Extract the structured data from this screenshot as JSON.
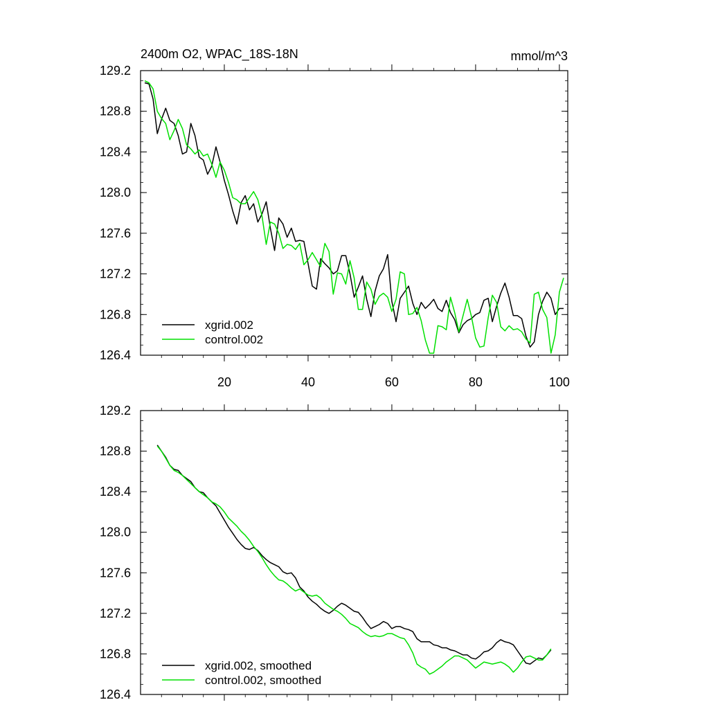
{
  "colors": {
    "xgrid": "#000000",
    "control": "#00e000",
    "axes": "#000000"
  },
  "chart_data": [
    {
      "type": "line",
      "title": "2400m O2, WPAC_18S-18N",
      "unit_label": "mmol/m^3",
      "xlim": [
        0,
        102
      ],
      "ylim": [
        126.4,
        129.2
      ],
      "yticks": [
        "129.2",
        "128.8",
        "128.4",
        "128.0",
        "127.6",
        "127.2",
        "126.8",
        "126.4"
      ],
      "xticks": [
        "20",
        "40",
        "60",
        "80",
        "100"
      ],
      "legend_position": "bottom-left",
      "series": [
        {
          "name": "xgrid.002",
          "color": "#000000",
          "x": [
            1,
            2,
            3,
            4,
            5,
            6,
            7,
            8,
            9,
            10,
            11,
            12,
            13,
            14,
            15,
            16,
            17,
            18,
            19,
            20,
            21,
            22,
            23,
            24,
            25,
            26,
            27,
            28,
            29,
            30,
            31,
            32,
            33,
            34,
            35,
            36,
            37,
            38,
            39,
            40,
            41,
            42,
            43,
            44,
            45,
            46,
            47,
            48,
            49,
            50,
            51,
            52,
            53,
            54,
            55,
            56,
            57,
            58,
            59,
            60,
            61,
            62,
            63,
            64,
            65,
            66,
            67,
            68,
            69,
            70,
            71,
            72,
            73,
            74,
            75,
            76,
            77,
            78,
            79,
            80,
            81,
            82,
            83,
            84,
            85,
            86,
            87,
            88,
            89,
            90,
            91,
            92,
            93,
            94,
            95,
            96,
            97,
            98,
            99,
            100,
            101
          ],
          "values": [
            129.08,
            129.07,
            128.92,
            128.58,
            128.72,
            128.83,
            128.71,
            128.68,
            128.56,
            128.38,
            128.4,
            128.68,
            128.56,
            128.35,
            128.32,
            128.18,
            128.26,
            128.45,
            128.3,
            128.12,
            127.98,
            127.82,
            127.69,
            127.9,
            127.97,
            127.83,
            127.89,
            127.71,
            127.79,
            127.91,
            127.65,
            127.43,
            127.75,
            127.69,
            127.56,
            127.65,
            127.52,
            127.53,
            127.52,
            127.3,
            127.08,
            127.05,
            127.35,
            127.3,
            127.26,
            127.2,
            127.23,
            127.38,
            127.38,
            127.2,
            126.97,
            127.07,
            127.18,
            126.95,
            126.78,
            127.03,
            127.18,
            127.25,
            127.39,
            126.93,
            126.73,
            126.96,
            127.02,
            127.08,
            126.91,
            126.8,
            126.92,
            126.86,
            126.9,
            126.95,
            126.86,
            126.83,
            126.94,
            126.82,
            126.75,
            126.62,
            126.7,
            126.74,
            126.76,
            126.8,
            126.82,
            126.94,
            126.96,
            126.73,
            126.88,
            127.01,
            127.11,
            126.97,
            126.79,
            126.79,
            126.76,
            126.59,
            126.48,
            126.53,
            126.8,
            126.93,
            127.02,
            126.96,
            126.8,
            126.86,
            126.86
          ]
        },
        {
          "name": "control.002",
          "color": "#00e000",
          "x": [
            1,
            2,
            3,
            4,
            5,
            6,
            7,
            8,
            9,
            10,
            11,
            12,
            13,
            14,
            15,
            16,
            17,
            18,
            19,
            20,
            21,
            22,
            23,
            24,
            25,
            26,
            27,
            28,
            29,
            30,
            31,
            32,
            33,
            34,
            35,
            36,
            37,
            38,
            39,
            40,
            41,
            42,
            43,
            44,
            45,
            46,
            47,
            48,
            49,
            50,
            51,
            52,
            53,
            54,
            55,
            56,
            57,
            58,
            59,
            60,
            61,
            62,
            63,
            64,
            65,
            66,
            67,
            68,
            69,
            70,
            71,
            72,
            73,
            74,
            75,
            76,
            77,
            78,
            79,
            80,
            81,
            82,
            83,
            84,
            85,
            86,
            87,
            88,
            89,
            90,
            91,
            92,
            93,
            94,
            95,
            96,
            97,
            98,
            99,
            100,
            101
          ],
          "values": [
            129.1,
            129.08,
            129.02,
            128.8,
            128.73,
            128.68,
            128.52,
            128.61,
            128.72,
            128.63,
            128.47,
            128.43,
            128.38,
            128.42,
            128.36,
            128.38,
            128.28,
            128.15,
            128.3,
            128.22,
            128.1,
            127.95,
            127.93,
            127.89,
            127.89,
            127.95,
            128.01,
            127.93,
            127.77,
            127.49,
            127.71,
            127.69,
            127.6,
            127.45,
            127.49,
            127.48,
            127.44,
            127.5,
            127.29,
            127.34,
            127.41,
            127.34,
            127.27,
            127.5,
            127.42,
            127.0,
            127.21,
            127.2,
            127.1,
            127.33,
            127.16,
            126.85,
            126.85,
            127.12,
            127.05,
            126.9,
            126.98,
            127.01,
            126.97,
            126.83,
            126.95,
            127.22,
            127.2,
            126.8,
            126.81,
            126.87,
            126.74,
            126.55,
            126.42,
            126.42,
            126.69,
            126.68,
            126.65,
            126.97,
            126.82,
            126.63,
            126.79,
            126.95,
            126.78,
            126.57,
            126.48,
            126.49,
            126.77,
            126.99,
            126.92,
            126.68,
            126.64,
            126.69,
            126.65,
            126.66,
            126.63,
            126.56,
            126.52,
            127.0,
            127.02,
            126.85,
            126.77,
            126.42,
            126.6,
            127.02,
            127.16
          ]
        }
      ]
    },
    {
      "type": "line",
      "title": "",
      "xlim": [
        0,
        102
      ],
      "ylim": [
        126.4,
        129.2
      ],
      "yticks": [
        "129.2",
        "128.8",
        "128.4",
        "128.0",
        "127.6",
        "127.2",
        "126.8",
        "126.4"
      ],
      "xticks": [],
      "legend_position": "bottom-left",
      "series": [
        {
          "name": "xgrid.002, smoothed",
          "color": "#000000",
          "x": [
            4,
            5,
            6,
            7,
            8,
            9,
            10,
            11,
            12,
            13,
            14,
            15,
            16,
            17,
            18,
            19,
            20,
            21,
            22,
            23,
            24,
            25,
            26,
            27,
            28,
            29,
            30,
            31,
            32,
            33,
            34,
            35,
            36,
            37,
            38,
            39,
            40,
            41,
            42,
            43,
            44,
            45,
            46,
            47,
            48,
            49,
            50,
            51,
            52,
            53,
            54,
            55,
            56,
            57,
            58,
            59,
            60,
            61,
            62,
            63,
            64,
            65,
            66,
            67,
            68,
            69,
            70,
            71,
            72,
            73,
            74,
            75,
            76,
            77,
            78,
            79,
            80,
            81,
            82,
            83,
            84,
            85,
            86,
            87,
            88,
            89,
            90,
            91,
            92,
            93,
            94,
            95,
            96,
            97,
            98
          ],
          "values": [
            128.86,
            128.8,
            128.74,
            128.66,
            128.62,
            128.61,
            128.56,
            128.53,
            128.5,
            128.44,
            128.4,
            128.39,
            128.34,
            128.3,
            128.26,
            128.19,
            128.12,
            128.05,
            127.99,
            127.93,
            127.88,
            127.84,
            127.83,
            127.85,
            127.82,
            127.77,
            127.73,
            127.7,
            127.68,
            127.66,
            127.61,
            127.59,
            127.6,
            127.55,
            127.46,
            127.42,
            127.36,
            127.32,
            127.29,
            127.25,
            127.22,
            127.2,
            127.23,
            127.27,
            127.3,
            127.28,
            127.25,
            127.22,
            127.21,
            127.16,
            127.1,
            127.05,
            127.07,
            127.09,
            127.12,
            127.1,
            127.05,
            127.07,
            127.07,
            127.05,
            127.04,
            127.02,
            126.95,
            126.92,
            126.92,
            126.92,
            126.89,
            126.88,
            126.86,
            126.86,
            126.84,
            126.83,
            126.81,
            126.79,
            126.79,
            126.76,
            126.75,
            126.78,
            126.82,
            126.83,
            126.86,
            126.91,
            126.94,
            126.92,
            126.91,
            126.89,
            126.83,
            126.77,
            126.71,
            126.7,
            126.73,
            126.76,
            126.75,
            126.79,
            126.84
          ]
        },
        {
          "name": "control.002, smoothed",
          "color": "#00e000",
          "x": [
            4,
            5,
            6,
            7,
            8,
            9,
            10,
            11,
            12,
            13,
            14,
            15,
            16,
            17,
            18,
            19,
            20,
            21,
            22,
            23,
            24,
            25,
            26,
            27,
            28,
            29,
            30,
            31,
            32,
            33,
            34,
            35,
            36,
            37,
            38,
            39,
            40,
            41,
            42,
            43,
            44,
            45,
            46,
            47,
            48,
            49,
            50,
            51,
            52,
            53,
            54,
            55,
            56,
            57,
            58,
            59,
            60,
            61,
            62,
            63,
            64,
            65,
            66,
            67,
            68,
            69,
            70,
            71,
            72,
            73,
            74,
            75,
            76,
            77,
            78,
            79,
            80,
            81,
            82,
            83,
            84,
            85,
            86,
            87,
            88,
            89,
            90,
            91,
            92,
            93,
            94,
            95,
            96,
            97,
            98
          ],
          "values": [
            128.85,
            128.8,
            128.73,
            128.66,
            128.61,
            128.59,
            128.56,
            128.52,
            128.48,
            128.44,
            128.4,
            128.37,
            128.34,
            128.3,
            128.28,
            128.25,
            128.2,
            128.14,
            128.1,
            128.06,
            128.01,
            127.97,
            127.92,
            127.86,
            127.81,
            127.75,
            127.68,
            127.62,
            127.57,
            127.53,
            127.52,
            127.49,
            127.45,
            127.42,
            127.44,
            127.41,
            127.38,
            127.37,
            127.38,
            127.35,
            127.3,
            127.27,
            127.24,
            127.22,
            127.19,
            127.15,
            127.1,
            127.08,
            127.06,
            127.02,
            126.99,
            126.97,
            126.98,
            126.97,
            126.98,
            127.0,
            127.0,
            126.98,
            126.96,
            126.95,
            126.89,
            126.81,
            126.7,
            126.67,
            126.65,
            126.6,
            126.62,
            126.65,
            126.68,
            126.72,
            126.75,
            126.78,
            126.78,
            126.76,
            126.74,
            126.7,
            126.66,
            126.69,
            126.72,
            126.71,
            126.7,
            126.71,
            126.72,
            126.7,
            126.67,
            126.62,
            126.66,
            126.72,
            126.77,
            126.78,
            126.76,
            126.74,
            126.74,
            126.79,
            126.85
          ]
        }
      ]
    }
  ]
}
